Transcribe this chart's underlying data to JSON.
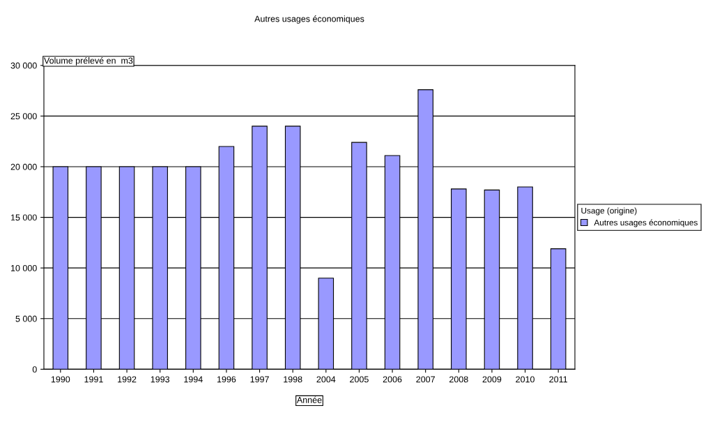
{
  "chart_data": {
    "type": "bar",
    "title": "Autres usages économiques",
    "xlabel": "Année",
    "ylabel": "Volume prélevé en  m3",
    "legend_title": "Usage (origine)",
    "categories": [
      "1990",
      "1991",
      "1992",
      "1993",
      "1994",
      "1996",
      "1997",
      "1998",
      "2004",
      "2005",
      "2006",
      "2007",
      "2008",
      "2009",
      "2010",
      "2011"
    ],
    "series": [
      {
        "name": "Autres usages économiques",
        "color": "#9999ff",
        "values": [
          20000,
          20000,
          20000,
          20000,
          20000,
          22000,
          24000,
          24000,
          9000,
          22400,
          21100,
          27600,
          17800,
          17700,
          18000,
          11900
        ]
      }
    ],
    "ylim": [
      0,
      30000
    ],
    "yticks": [
      0,
      {
        "value": 5000,
        "label": "5 000"
      },
      {
        "value": 10000,
        "label": "10 000"
      },
      {
        "value": 15000,
        "label": "15 000"
      },
      {
        "value": 20000,
        "label": "20 000"
      },
      {
        "value": 25000,
        "label": "25 000"
      },
      {
        "value": 30000,
        "label": "30 000"
      }
    ],
    "grid": "y",
    "legend": "right"
  }
}
